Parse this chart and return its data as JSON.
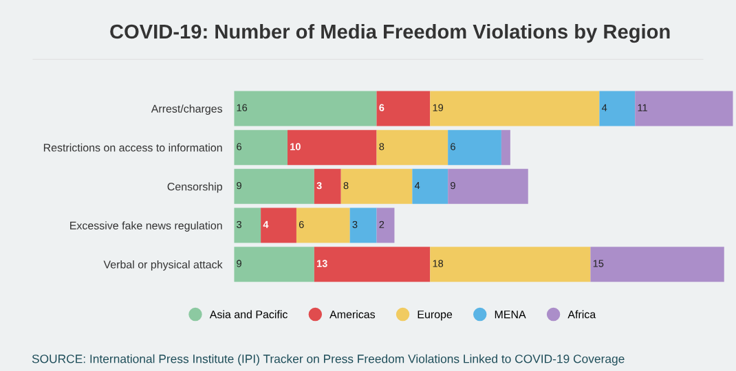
{
  "chart_data": {
    "type": "bar",
    "orientation": "horizontal",
    "stacked": true,
    "title": "COVID-19: Number of Media Freedom Violations by Region",
    "categories": [
      "Arrest/charges",
      "Restrictions on access to information",
      "Censorship",
      "Excessive fake news regulation",
      "Verbal or physical attack"
    ],
    "series": [
      {
        "name": "Asia and Pacific",
        "color": "#8cc9a1",
        "values": [
          16,
          6,
          9,
          3,
          9
        ],
        "value_labels": [
          "16",
          "6",
          "9",
          "3",
          "9"
        ]
      },
      {
        "name": "Americas",
        "color": "#e04c4e",
        "values": [
          6,
          10,
          3,
          4,
          13
        ],
        "value_labels": [
          "6",
          "10",
          "3",
          "4",
          "13"
        ]
      },
      {
        "name": "Europe",
        "color": "#f1cb61",
        "values": [
          19,
          8,
          8,
          6,
          18
        ],
        "value_labels": [
          "19",
          "8",
          "8",
          "6",
          "18"
        ]
      },
      {
        "name": "MENA",
        "color": "#5ab4e5",
        "values": [
          4,
          6,
          4,
          3,
          0
        ],
        "value_labels": [
          "4",
          "6",
          "4",
          "3",
          null
        ]
      },
      {
        "name": "Africa",
        "color": "#ab8ec9",
        "values": [
          11,
          1,
          9,
          2,
          15
        ],
        "value_labels": [
          "11",
          null,
          "9",
          "2",
          "15"
        ]
      }
    ],
    "legend": "bottom",
    "annotations": [
      "SOURCE: International Press Institute (IPI) Tracker on Press Freedom Violations Linked to COVID-19 Coverage"
    ]
  }
}
